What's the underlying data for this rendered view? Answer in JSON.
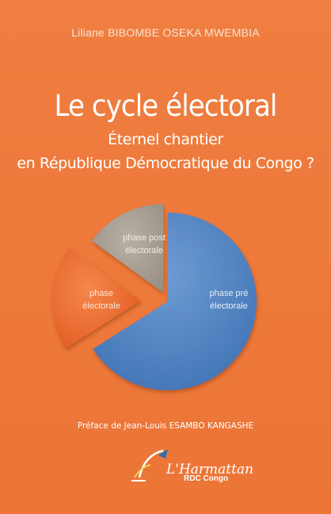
{
  "cover": {
    "author": "Liliane BIBOMBE OSEKA MWEMBIA",
    "title": "Le cycle électoral",
    "subtitle_line1": "Éternel chantier",
    "subtitle_line2": "en République Démocratique du Congo ?",
    "preface": "Préface de Jean-Louis ESAMBO KANGASHE",
    "publisher": "L'Harmattan",
    "publisher_sub": "RDC Congo"
  },
  "chart_data": {
    "type": "pie",
    "slices": [
      {
        "label_line1": "phase pré",
        "label_line2": "électorale",
        "value": 66,
        "color": "#4f82c0"
      },
      {
        "label_line1": "phase",
        "label_line2": "électorale",
        "value": 19,
        "color": "#ef6a2c"
      },
      {
        "label_line1": "phase post",
        "label_line2": "électorale",
        "value": 15,
        "color": "#a39a90"
      }
    ]
  }
}
